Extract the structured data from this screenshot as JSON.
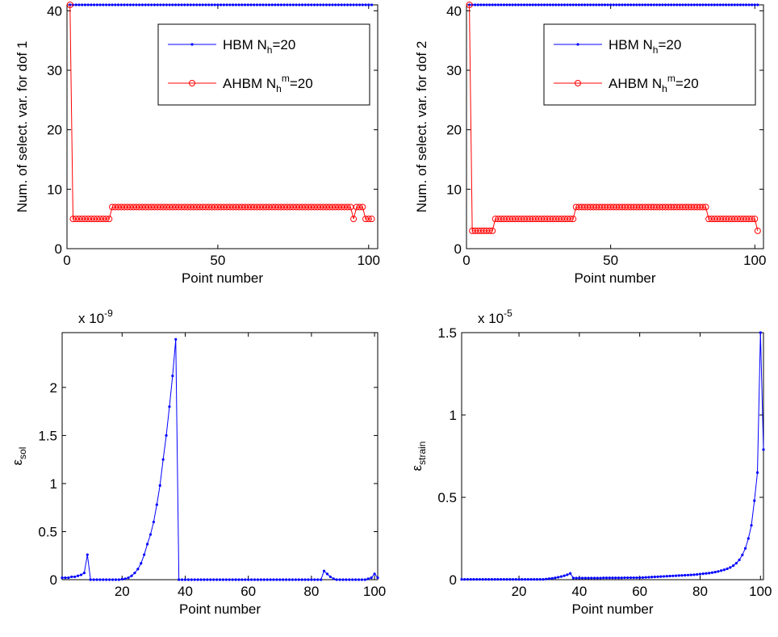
{
  "chart_data": [
    {
      "type": "line",
      "ylabel": "Num. of select. var. for dof 1",
      "xlabel": "Point number",
      "xlim": [
        0,
        103
      ],
      "ylim": [
        0,
        41
      ],
      "xticks": [
        0,
        50,
        100
      ],
      "yticks": [
        0,
        10,
        20,
        30,
        40
      ],
      "legend": "upper-right",
      "x": [
        1,
        2,
        3,
        4,
        5,
        6,
        7,
        8,
        9,
        10,
        11,
        12,
        13,
        14,
        15,
        16,
        17,
        18,
        19,
        20,
        21,
        22,
        23,
        24,
        25,
        26,
        27,
        28,
        29,
        30,
        31,
        32,
        33,
        34,
        35,
        36,
        37,
        38,
        39,
        40,
        41,
        42,
        43,
        44,
        45,
        46,
        47,
        48,
        49,
        50,
        51,
        52,
        53,
        54,
        55,
        56,
        57,
        58,
        59,
        60,
        61,
        62,
        63,
        64,
        65,
        66,
        67,
        68,
        69,
        70,
        71,
        72,
        73,
        74,
        75,
        76,
        77,
        78,
        79,
        80,
        81,
        82,
        83,
        84,
        85,
        86,
        87,
        88,
        89,
        90,
        91,
        92,
        93,
        94,
        95,
        96,
        97,
        98,
        99,
        100,
        101
      ],
      "series": [
        {
          "name": "HBM N_h=20",
          "color": "#0000ff",
          "marker": "dot",
          "values": [
            41,
            41,
            41,
            41,
            41,
            41,
            41,
            41,
            41,
            41,
            41,
            41,
            41,
            41,
            41,
            41,
            41,
            41,
            41,
            41,
            41,
            41,
            41,
            41,
            41,
            41,
            41,
            41,
            41,
            41,
            41,
            41,
            41,
            41,
            41,
            41,
            41,
            41,
            41,
            41,
            41,
            41,
            41,
            41,
            41,
            41,
            41,
            41,
            41,
            41,
            41,
            41,
            41,
            41,
            41,
            41,
            41,
            41,
            41,
            41,
            41,
            41,
            41,
            41,
            41,
            41,
            41,
            41,
            41,
            41,
            41,
            41,
            41,
            41,
            41,
            41,
            41,
            41,
            41,
            41,
            41,
            41,
            41,
            41,
            41,
            41,
            41,
            41,
            41,
            41,
            41,
            41,
            41,
            41,
            41,
            41,
            41,
            41,
            41,
            41,
            41
          ]
        },
        {
          "name": "AHBM N_h^m=20",
          "color": "#ff0000",
          "marker": "circle",
          "values": [
            41,
            5,
            5,
            5,
            5,
            5,
            5,
            5,
            5,
            5,
            5,
            5,
            5,
            5,
            7,
            7,
            7,
            7,
            7,
            7,
            7,
            7,
            7,
            7,
            7,
            7,
            7,
            7,
            7,
            7,
            7,
            7,
            7,
            7,
            7,
            7,
            7,
            7,
            7,
            7,
            7,
            7,
            7,
            7,
            7,
            7,
            7,
            7,
            7,
            7,
            7,
            7,
            7,
            7,
            7,
            7,
            7,
            7,
            7,
            7,
            7,
            7,
            7,
            7,
            7,
            7,
            7,
            7,
            7,
            7,
            7,
            7,
            7,
            7,
            7,
            7,
            7,
            7,
            7,
            7,
            7,
            7,
            7,
            7,
            7,
            7,
            7,
            7,
            7,
            7,
            7,
            7,
            7,
            7,
            5,
            7,
            7,
            7,
            5,
            5,
            5
          ]
        }
      ]
    },
    {
      "type": "line",
      "ylabel": "Num. of select. var. for dof 2",
      "xlabel": "Point number",
      "xlim": [
        0,
        103
      ],
      "ylim": [
        0,
        41
      ],
      "xticks": [
        0,
        50,
        100
      ],
      "yticks": [
        0,
        10,
        20,
        30,
        40
      ],
      "legend": "upper-right",
      "x": [
        1,
        2,
        3,
        4,
        5,
        6,
        7,
        8,
        9,
        10,
        11,
        12,
        13,
        14,
        15,
        16,
        17,
        18,
        19,
        20,
        21,
        22,
        23,
        24,
        25,
        26,
        27,
        28,
        29,
        30,
        31,
        32,
        33,
        34,
        35,
        36,
        37,
        38,
        39,
        40,
        41,
        42,
        43,
        44,
        45,
        46,
        47,
        48,
        49,
        50,
        51,
        52,
        53,
        54,
        55,
        56,
        57,
        58,
        59,
        60,
        61,
        62,
        63,
        64,
        65,
        66,
        67,
        68,
        69,
        70,
        71,
        72,
        73,
        74,
        75,
        76,
        77,
        78,
        79,
        80,
        81,
        82,
        83,
        84,
        85,
        86,
        87,
        88,
        89,
        90,
        91,
        92,
        93,
        94,
        95,
        96,
        97,
        98,
        99,
        100,
        101
      ],
      "series": [
        {
          "name": "HBM N_h=20",
          "color": "#0000ff",
          "marker": "dot",
          "values": [
            41,
            41,
            41,
            41,
            41,
            41,
            41,
            41,
            41,
            41,
            41,
            41,
            41,
            41,
            41,
            41,
            41,
            41,
            41,
            41,
            41,
            41,
            41,
            41,
            41,
            41,
            41,
            41,
            41,
            41,
            41,
            41,
            41,
            41,
            41,
            41,
            41,
            41,
            41,
            41,
            41,
            41,
            41,
            41,
            41,
            41,
            41,
            41,
            41,
            41,
            41,
            41,
            41,
            41,
            41,
            41,
            41,
            41,
            41,
            41,
            41,
            41,
            41,
            41,
            41,
            41,
            41,
            41,
            41,
            41,
            41,
            41,
            41,
            41,
            41,
            41,
            41,
            41,
            41,
            41,
            41,
            41,
            41,
            41,
            41,
            41,
            41,
            41,
            41,
            41,
            41,
            41,
            41,
            41,
            41,
            41,
            41,
            41,
            41,
            41,
            41
          ]
        },
        {
          "name": "AHBM N_h^m=20",
          "color": "#ff0000",
          "marker": "circle",
          "values": [
            41,
            3,
            3,
            3,
            3,
            3,
            3,
            3,
            3,
            5,
            5,
            5,
            5,
            5,
            5,
            5,
            5,
            5,
            5,
            5,
            5,
            5,
            5,
            5,
            5,
            5,
            5,
            5,
            5,
            5,
            5,
            5,
            5,
            5,
            5,
            5,
            5,
            7,
            7,
            7,
            7,
            7,
            7,
            7,
            7,
            7,
            7,
            7,
            7,
            7,
            7,
            7,
            7,
            7,
            7,
            7,
            7,
            7,
            7,
            7,
            7,
            7,
            7,
            7,
            7,
            7,
            7,
            7,
            7,
            7,
            7,
            7,
            7,
            7,
            7,
            7,
            7,
            7,
            7,
            7,
            7,
            7,
            7,
            5,
            5,
            5,
            5,
            5,
            5,
            5,
            5,
            5,
            5,
            5,
            5,
            5,
            5,
            5,
            5,
            5,
            3
          ]
        }
      ]
    },
    {
      "type": "line",
      "ylabel": "ε_{sol}",
      "xlabel": "Point number",
      "multiplier": "x 10^{-9}",
      "xlim": [
        1,
        101
      ],
      "ylim": [
        0,
        2.57
      ],
      "xticks": [
        20,
        40,
        60,
        80,
        100
      ],
      "yticks": [
        0,
        0.5,
        1,
        1.5,
        2
      ],
      "x": [
        1,
        2,
        3,
        4,
        5,
        6,
        7,
        8,
        9,
        10,
        11,
        12,
        13,
        14,
        15,
        16,
        17,
        18,
        19,
        20,
        21,
        22,
        23,
        24,
        25,
        26,
        27,
        28,
        29,
        30,
        31,
        32,
        33,
        34,
        35,
        36,
        37,
        38,
        39,
        40,
        41,
        42,
        43,
        44,
        45,
        46,
        47,
        48,
        49,
        50,
        51,
        52,
        53,
        54,
        55,
        56,
        57,
        58,
        59,
        60,
        61,
        62,
        63,
        64,
        65,
        66,
        67,
        68,
        69,
        70,
        71,
        72,
        73,
        74,
        75,
        76,
        77,
        78,
        79,
        80,
        81,
        82,
        83,
        84,
        85,
        86,
        87,
        88,
        89,
        90,
        91,
        92,
        93,
        94,
        95,
        96,
        97,
        98,
        99,
        100,
        101
      ],
      "series": [
        {
          "color": "#0000ff",
          "marker": "dot",
          "values": [
            0.02,
            0.02,
            0.02,
            0.03,
            0.03,
            0.04,
            0.05,
            0.07,
            0.26,
            0,
            0,
            0,
            0,
            0,
            0,
            0,
            0,
            0,
            0,
            0.005,
            0.01,
            0.02,
            0.04,
            0.07,
            0.11,
            0.17,
            0.26,
            0.37,
            0.47,
            0.6,
            0.78,
            0.98,
            1.25,
            1.5,
            1.8,
            2.12,
            2.5,
            0,
            0,
            0,
            0,
            0,
            0,
            0,
            0,
            0,
            0,
            0,
            0,
            0,
            0,
            0,
            0,
            0,
            0,
            0,
            0,
            0,
            0,
            0,
            0,
            0,
            0,
            0,
            0,
            0,
            0,
            0,
            0,
            0,
            0,
            0,
            0,
            0,
            0,
            0,
            0,
            0,
            0,
            0,
            0,
            0,
            0,
            0.09,
            0.06,
            0.03,
            0.01,
            0,
            0,
            0,
            0,
            0,
            0,
            0,
            0,
            0,
            0,
            0.01,
            0.02,
            0.06,
            0.02
          ]
        }
      ]
    },
    {
      "type": "line",
      "ylabel": "ε_{strain}",
      "xlabel": "Point number",
      "multiplier": "x 10^{-5}",
      "xlim": [
        1,
        101
      ],
      "ylim": [
        0,
        1.5
      ],
      "xticks": [
        20,
        40,
        60,
        80,
        100
      ],
      "yticks": [
        0,
        0.5,
        1,
        1.5
      ],
      "x": [
        1,
        2,
        3,
        4,
        5,
        6,
        7,
        8,
        9,
        10,
        11,
        12,
        13,
        14,
        15,
        16,
        17,
        18,
        19,
        20,
        21,
        22,
        23,
        24,
        25,
        26,
        27,
        28,
        29,
        30,
        31,
        32,
        33,
        34,
        35,
        36,
        37,
        38,
        39,
        40,
        41,
        42,
        43,
        44,
        45,
        46,
        47,
        48,
        49,
        50,
        51,
        52,
        53,
        54,
        55,
        56,
        57,
        58,
        59,
        60,
        61,
        62,
        63,
        64,
        65,
        66,
        67,
        68,
        69,
        70,
        71,
        72,
        73,
        74,
        75,
        76,
        77,
        78,
        79,
        80,
        81,
        82,
        83,
        84,
        85,
        86,
        87,
        88,
        89,
        90,
        91,
        92,
        93,
        94,
        95,
        96,
        97,
        98,
        99,
        100,
        101
      ],
      "series": [
        {
          "color": "#0000ff",
          "marker": "dot",
          "values": [
            0.002,
            0.002,
            0.002,
            0.002,
            0.002,
            0.002,
            0.002,
            0.002,
            0.002,
            0.002,
            0.002,
            0.002,
            0.002,
            0.002,
            0.002,
            0.002,
            0.002,
            0.002,
            0.002,
            0.002,
            0.002,
            0.002,
            0.002,
            0.002,
            0.002,
            0.002,
            0.002,
            0.002,
            0.004,
            0.006,
            0.008,
            0.011,
            0.015,
            0.019,
            0.024,
            0.03,
            0.038,
            0.01,
            0.01,
            0.01,
            0.01,
            0.01,
            0.01,
            0.01,
            0.01,
            0.01,
            0.01,
            0.011,
            0.011,
            0.011,
            0.011,
            0.011,
            0.011,
            0.011,
            0.012,
            0.012,
            0.012,
            0.012,
            0.012,
            0.012,
            0.013,
            0.014,
            0.015,
            0.016,
            0.017,
            0.018,
            0.019,
            0.02,
            0.021,
            0.022,
            0.023,
            0.024,
            0.025,
            0.026,
            0.027,
            0.028,
            0.029,
            0.03,
            0.032,
            0.034,
            0.036,
            0.038,
            0.04,
            0.043,
            0.046,
            0.05,
            0.055,
            0.06,
            0.066,
            0.074,
            0.085,
            0.1,
            0.12,
            0.15,
            0.19,
            0.25,
            0.33,
            0.48,
            0.65,
            1.5,
            0.79
          ]
        }
      ]
    }
  ]
}
